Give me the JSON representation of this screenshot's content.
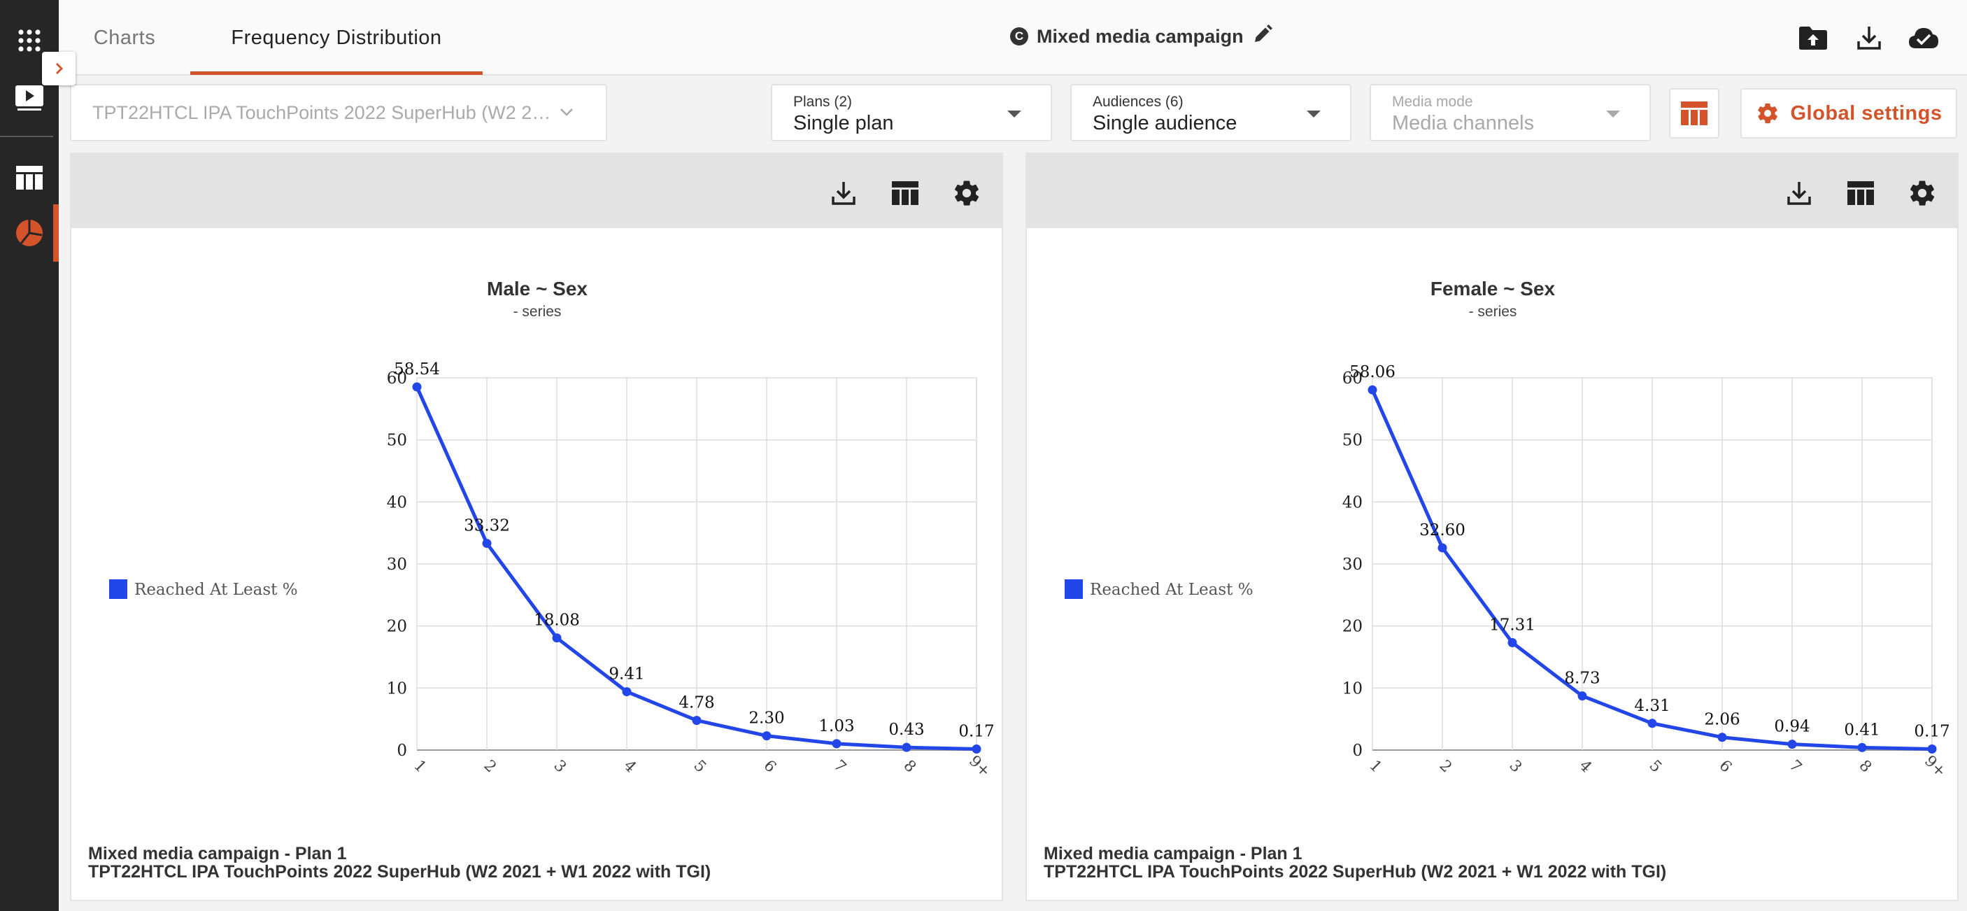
{
  "header": {
    "tabs": [
      {
        "label": "Charts"
      },
      {
        "label": "Frequency Distribution"
      }
    ],
    "campaign_badge": "C",
    "campaign_name": "Mixed media campaign"
  },
  "toolbar": {
    "dataset_value": "TPT22HTCL IPA TouchPoints 2022 SuperHub (W2 2021 + W1 2022 with TGI)",
    "plans": {
      "label": "Plans (2)",
      "value": "Single plan"
    },
    "audiences": {
      "label": "Audiences (6)",
      "value": "Single audience"
    },
    "media_mode": {
      "label": "Media mode",
      "value": "Media channels"
    },
    "global_settings_label": "Global settings"
  },
  "colors": {
    "accent": "#d4532a",
    "series": "#2246e8"
  },
  "icons": [
    "apps-grid-icon",
    "play-icon",
    "table-icon",
    "pie-chart-icon",
    "upload-folder-icon",
    "download-icon",
    "cloud-check-icon",
    "edit-pencil-icon",
    "gear-icon",
    "chevron-right-icon"
  ],
  "panels": [
    {
      "footer_line1": "Mixed media campaign - Plan 1",
      "footer_line2": "TPT22HTCL IPA TouchPoints 2022 SuperHub (W2 2021 + W1 2022 with TGI)"
    },
    {
      "footer_line1": "Mixed media campaign - Plan 1",
      "footer_line2": "TPT22HTCL IPA TouchPoints 2022 SuperHub (W2 2021 + W1 2022 with TGI)"
    }
  ],
  "chart_data": [
    {
      "type": "line",
      "title": "Male ~ Sex",
      "subtitle": "- series",
      "categories": [
        "1",
        "2",
        "3",
        "4",
        "5",
        "6",
        "7",
        "8",
        "9+"
      ],
      "series": [
        {
          "name": "Reached At Least %",
          "values": [
            58.54,
            33.32,
            18.08,
            9.41,
            4.78,
            2.3,
            1.03,
            0.43,
            0.17
          ]
        }
      ],
      "data_labels": [
        "58.54",
        "33.32",
        "18.08",
        "9.41",
        "4.78",
        "2.30",
        "1.03",
        "0.43",
        "0.17"
      ],
      "y_ticks": [
        "0",
        "10",
        "20",
        "30",
        "40",
        "50",
        "60"
      ],
      "ylim": [
        0,
        60
      ],
      "grid": true,
      "legend_position": "left"
    },
    {
      "type": "line",
      "title": "Female ~ Sex",
      "subtitle": "- series",
      "categories": [
        "1",
        "2",
        "3",
        "4",
        "5",
        "6",
        "7",
        "8",
        "9+"
      ],
      "series": [
        {
          "name": "Reached At Least %",
          "values": [
            58.06,
            32.6,
            17.31,
            8.73,
            4.31,
            2.06,
            0.94,
            0.41,
            0.17
          ]
        }
      ],
      "data_labels": [
        "58.06",
        "32.60",
        "17.31",
        "8.73",
        "4.31",
        "2.06",
        "0.94",
        "0.41",
        "0.17"
      ],
      "y_ticks": [
        "0",
        "10",
        "20",
        "30",
        "40",
        "50",
        "60"
      ],
      "ylim": [
        0,
        60
      ],
      "grid": true,
      "legend_position": "left"
    }
  ]
}
